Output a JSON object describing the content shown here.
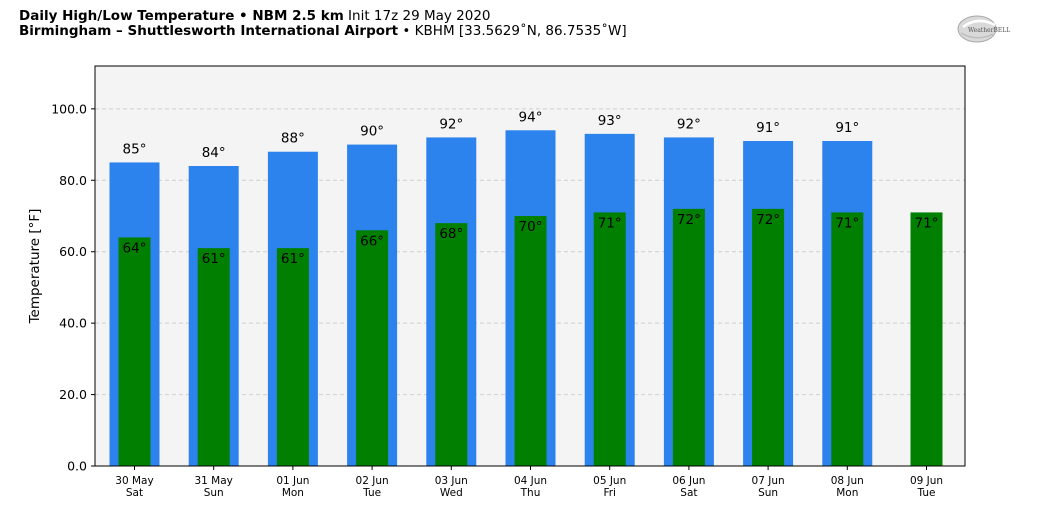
{
  "header": {
    "line1_bold": "Daily High/Low Temperature • NBM 2.5 km",
    "line1_rest": " Init 17z 29 May 2020",
    "line2_bold": "Birmingham – Shuttlesworth International Airport",
    "line2_rest": " • KBHM [33.5629˚N, 86.7535˚W]"
  },
  "logo": {
    "text": "WeatherBELL",
    "icon": "weatherbell-logo"
  },
  "colors": {
    "high": "#2c83ee",
    "low": "#007f00",
    "plot_bg": "#f4f4f4",
    "grid": "#cfcfcf"
  },
  "chart_data": {
    "type": "bar",
    "ylabel": "Temperature [°F]",
    "ylim": [
      0,
      112
    ],
    "yticks": [
      "0.0",
      "20.0",
      "40.0",
      "60.0",
      "80.0",
      "100.0"
    ],
    "ytick_values": [
      0,
      20,
      40,
      60,
      80,
      100
    ],
    "grid": true,
    "categories": [
      {
        "date": "30 May",
        "day": "Sat"
      },
      {
        "date": "31 May",
        "day": "Sun"
      },
      {
        "date": "01 Jun",
        "day": "Mon"
      },
      {
        "date": "02 Jun",
        "day": "Tue"
      },
      {
        "date": "03 Jun",
        "day": "Wed"
      },
      {
        "date": "04 Jun",
        "day": "Thu"
      },
      {
        "date": "05 Jun",
        "day": "Fri"
      },
      {
        "date": "06 Jun",
        "day": "Sat"
      },
      {
        "date": "07 Jun",
        "day": "Sun"
      },
      {
        "date": "08 Jun",
        "day": "Mon"
      },
      {
        "date": "09 Jun",
        "day": "Tue"
      }
    ],
    "series": [
      {
        "values": [
          85,
          84,
          88,
          90,
          92,
          94,
          93,
          92,
          91,
          91,
          null
        ],
        "labels": [
          "85°",
          "84°",
          "88°",
          "90°",
          "92°",
          "94°",
          "93°",
          "92°",
          "91°",
          "91°",
          ""
        ]
      },
      {
        "values": [
          64,
          61,
          61,
          66,
          68,
          70,
          71,
          72,
          72,
          71,
          71
        ],
        "labels": [
          "64°",
          "61°",
          "61°",
          "66°",
          "68°",
          "70°",
          "71°",
          "72°",
          "72°",
          "71°",
          "71°"
        ]
      }
    ]
  }
}
